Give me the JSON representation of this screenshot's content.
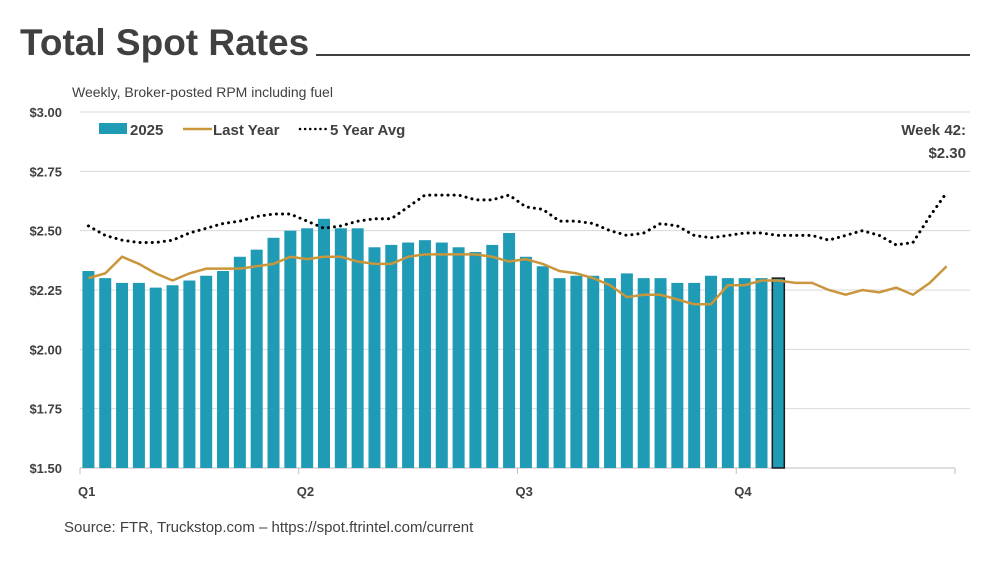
{
  "chart_data": {
    "type": "bar",
    "title": "Total Spot Rates",
    "subtitle": "Weekly, Broker-posted RPM including fuel",
    "source": "Source: FTR, Truckstop.com – https://spot.ftrintel.com/current",
    "ylim": [
      1.5,
      3.0
    ],
    "yticks": [
      1.5,
      1.75,
      2.0,
      2.25,
      2.5,
      2.75,
      3.0
    ],
    "ytick_labels": [
      "$1.50",
      "$1.75",
      "$2.00",
      "$2.25",
      "$2.50",
      "$2.75",
      "$3.00"
    ],
    "xlim_weeks": [
      1,
      52
    ],
    "xtick_labels": [
      "Q1",
      "Q2",
      "Q3",
      "Q4"
    ],
    "grid": true,
    "legend_placement": "top-left",
    "annotation": {
      "line1": "Week 42:",
      "line2": "$2.30"
    },
    "colors": {
      "bars": "#1f9bb5",
      "last_bar_outline": "#1a1a1a",
      "last_year": "#c9963c",
      "five_year_avg": "#000000",
      "grid": "#d9d9d9"
    },
    "series": [
      {
        "name": "2025",
        "kind": "bar",
        "values": [
          2.33,
          2.3,
          2.28,
          2.28,
          2.26,
          2.27,
          2.29,
          2.31,
          2.33,
          2.39,
          2.42,
          2.47,
          2.5,
          2.51,
          2.55,
          2.51,
          2.51,
          2.43,
          2.44,
          2.45,
          2.46,
          2.45,
          2.43,
          2.41,
          2.44,
          2.49,
          2.39,
          2.35,
          2.3,
          2.31,
          2.31,
          2.3,
          2.32,
          2.3,
          2.3,
          2.28,
          2.28,
          2.31,
          2.3,
          2.3,
          2.3,
          2.3
        ]
      },
      {
        "name": "Last Year",
        "kind": "line",
        "values": [
          2.3,
          2.32,
          2.39,
          2.36,
          2.32,
          2.29,
          2.32,
          2.34,
          2.34,
          2.34,
          2.35,
          2.36,
          2.39,
          2.38,
          2.39,
          2.39,
          2.37,
          2.36,
          2.36,
          2.39,
          2.4,
          2.4,
          2.4,
          2.4,
          2.39,
          2.37,
          2.38,
          2.36,
          2.33,
          2.32,
          2.3,
          2.27,
          2.22,
          2.23,
          2.23,
          2.21,
          2.19,
          2.19,
          2.27,
          2.27,
          2.29,
          2.29,
          2.28,
          2.28,
          2.25,
          2.23,
          2.25,
          2.24,
          2.26,
          2.23,
          2.28,
          2.35
        ]
      },
      {
        "name": "5 Year Avg",
        "kind": "dotted-line",
        "values": [
          2.52,
          2.48,
          2.46,
          2.45,
          2.45,
          2.46,
          2.49,
          2.51,
          2.53,
          2.54,
          2.56,
          2.57,
          2.57,
          2.54,
          2.51,
          2.52,
          2.54,
          2.55,
          2.55,
          2.6,
          2.65,
          2.65,
          2.65,
          2.63,
          2.63,
          2.65,
          2.6,
          2.59,
          2.54,
          2.54,
          2.53,
          2.5,
          2.48,
          2.49,
          2.53,
          2.52,
          2.48,
          2.47,
          2.48,
          2.49,
          2.49,
          2.48,
          2.48,
          2.48,
          2.46,
          2.48,
          2.5,
          2.48,
          2.44,
          2.45,
          2.56,
          2.66
        ]
      }
    ]
  }
}
